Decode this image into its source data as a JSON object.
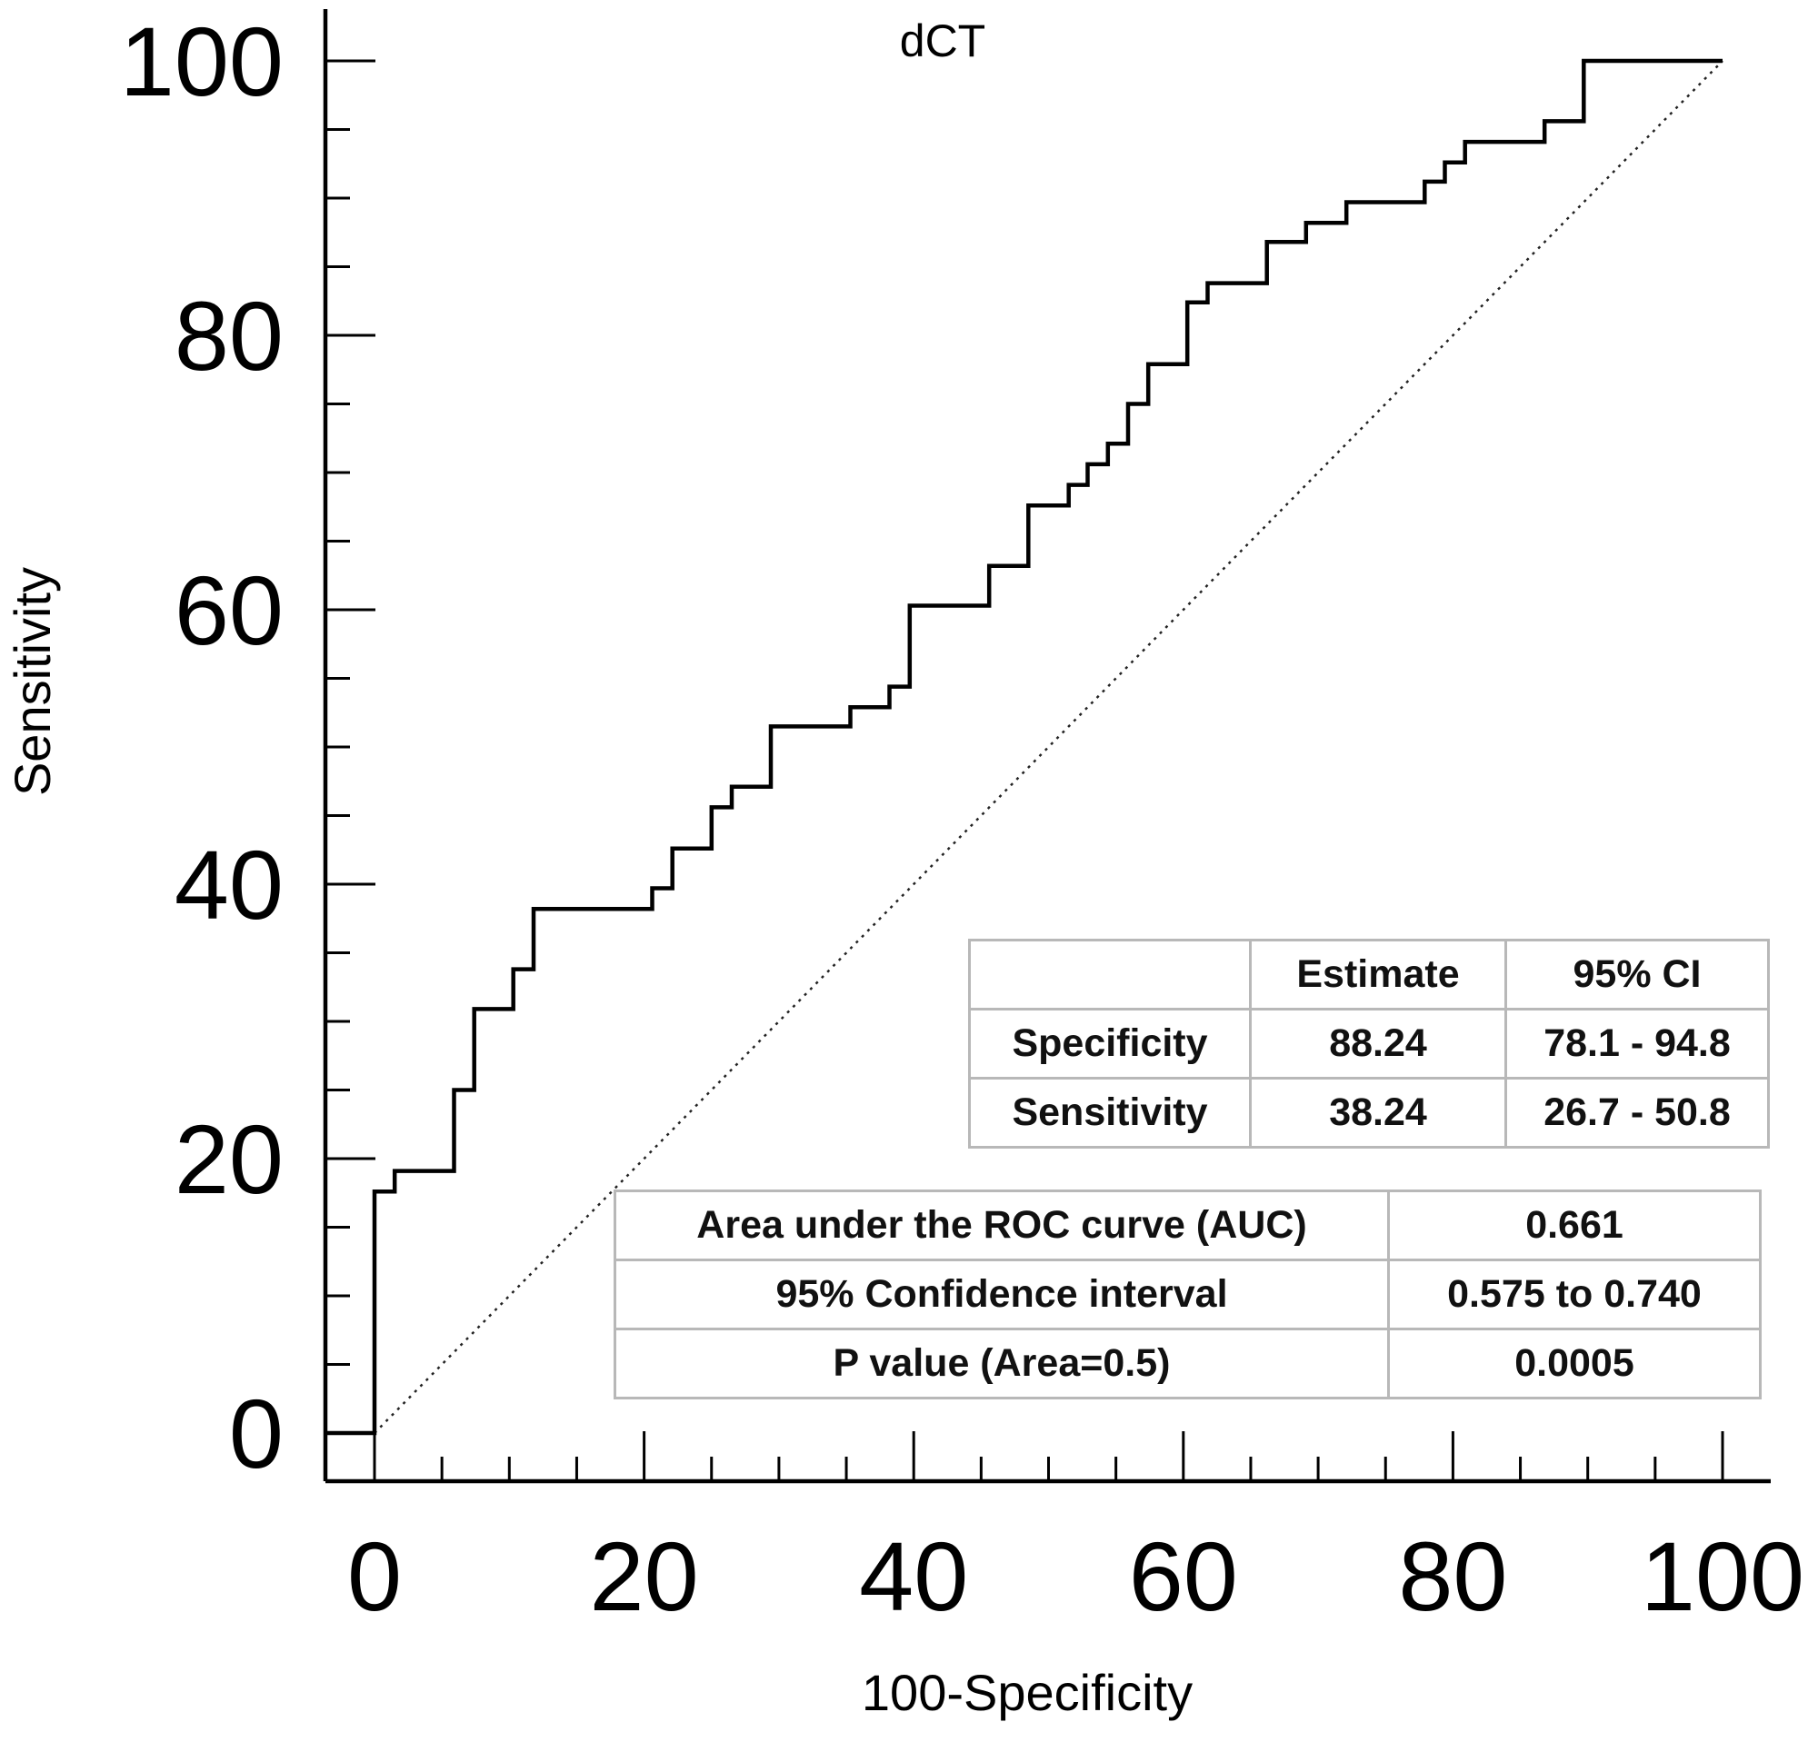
{
  "chart_data": {
    "type": "line",
    "title": "dCT",
    "xlabel": "100-Specificity",
    "ylabel": "Sensitivity",
    "xlim": [
      0,
      100
    ],
    "ylim": [
      0,
      100
    ],
    "x_ticks": [
      "0",
      "20",
      "40",
      "60",
      "80",
      "100"
    ],
    "y_ticks": [
      "0",
      "20",
      "40",
      "60",
      "80",
      "100"
    ],
    "grid": false,
    "reference_line": {
      "style": "dotted",
      "from": [
        0,
        0
      ],
      "to": [
        100,
        100
      ]
    },
    "series": [
      {
        "points": [
          [
            0,
            0
          ],
          [
            0,
            17.6
          ],
          [
            1.5,
            17.6
          ],
          [
            1.5,
            19.1
          ],
          [
            5.9,
            19.1
          ],
          [
            5.9,
            25.0
          ],
          [
            7.4,
            25.0
          ],
          [
            7.4,
            30.9
          ],
          [
            10.3,
            30.9
          ],
          [
            10.3,
            33.8
          ],
          [
            11.8,
            33.8
          ],
          [
            11.8,
            38.2
          ],
          [
            20.6,
            38.2
          ],
          [
            20.6,
            39.7
          ],
          [
            22.1,
            39.7
          ],
          [
            22.1,
            42.6
          ],
          [
            25.0,
            42.6
          ],
          [
            25.0,
            45.6
          ],
          [
            26.5,
            45.6
          ],
          [
            26.5,
            47.1
          ],
          [
            29.4,
            47.1
          ],
          [
            29.4,
            51.5
          ],
          [
            35.3,
            51.5
          ],
          [
            35.3,
            52.9
          ],
          [
            38.2,
            52.9
          ],
          [
            38.2,
            54.4
          ],
          [
            39.7,
            54.4
          ],
          [
            39.7,
            60.3
          ],
          [
            45.6,
            60.3
          ],
          [
            45.6,
            63.2
          ],
          [
            48.5,
            63.2
          ],
          [
            48.5,
            67.6
          ],
          [
            51.5,
            67.6
          ],
          [
            51.5,
            69.1
          ],
          [
            52.9,
            69.1
          ],
          [
            52.9,
            70.6
          ],
          [
            54.4,
            70.6
          ],
          [
            54.4,
            72.1
          ],
          [
            55.9,
            72.1
          ],
          [
            55.9,
            75.0
          ],
          [
            57.4,
            75.0
          ],
          [
            57.4,
            77.9
          ],
          [
            60.3,
            77.9
          ],
          [
            60.3,
            82.4
          ],
          [
            61.8,
            82.4
          ],
          [
            61.8,
            83.8
          ],
          [
            66.2,
            83.8
          ],
          [
            66.2,
            86.8
          ],
          [
            69.1,
            86.8
          ],
          [
            69.1,
            88.2
          ],
          [
            72.1,
            88.2
          ],
          [
            72.1,
            89.7
          ],
          [
            77.9,
            89.7
          ],
          [
            77.9,
            91.2
          ],
          [
            79.4,
            91.2
          ],
          [
            79.4,
            92.6
          ],
          [
            80.9,
            92.6
          ],
          [
            80.9,
            94.1
          ],
          [
            86.8,
            94.1
          ],
          [
            86.8,
            95.6
          ],
          [
            89.7,
            95.6
          ],
          [
            89.7,
            100
          ],
          [
            100,
            100
          ]
        ]
      }
    ]
  },
  "criterion_table": {
    "headers": [
      "",
      "Estimate",
      "95% CI"
    ],
    "rows": [
      [
        "Specificity",
        "88.24",
        "78.1 - 94.8"
      ],
      [
        "Sensitivity",
        "38.24",
        "26.7 - 50.8"
      ]
    ]
  },
  "auc_table": {
    "rows": [
      [
        "Area under the ROC curve (AUC)",
        "0.661"
      ],
      [
        "95% Confidence interval",
        "0.575 to 0.740"
      ],
      [
        "P value (Area=0.5)",
        "0.0005"
      ]
    ]
  }
}
